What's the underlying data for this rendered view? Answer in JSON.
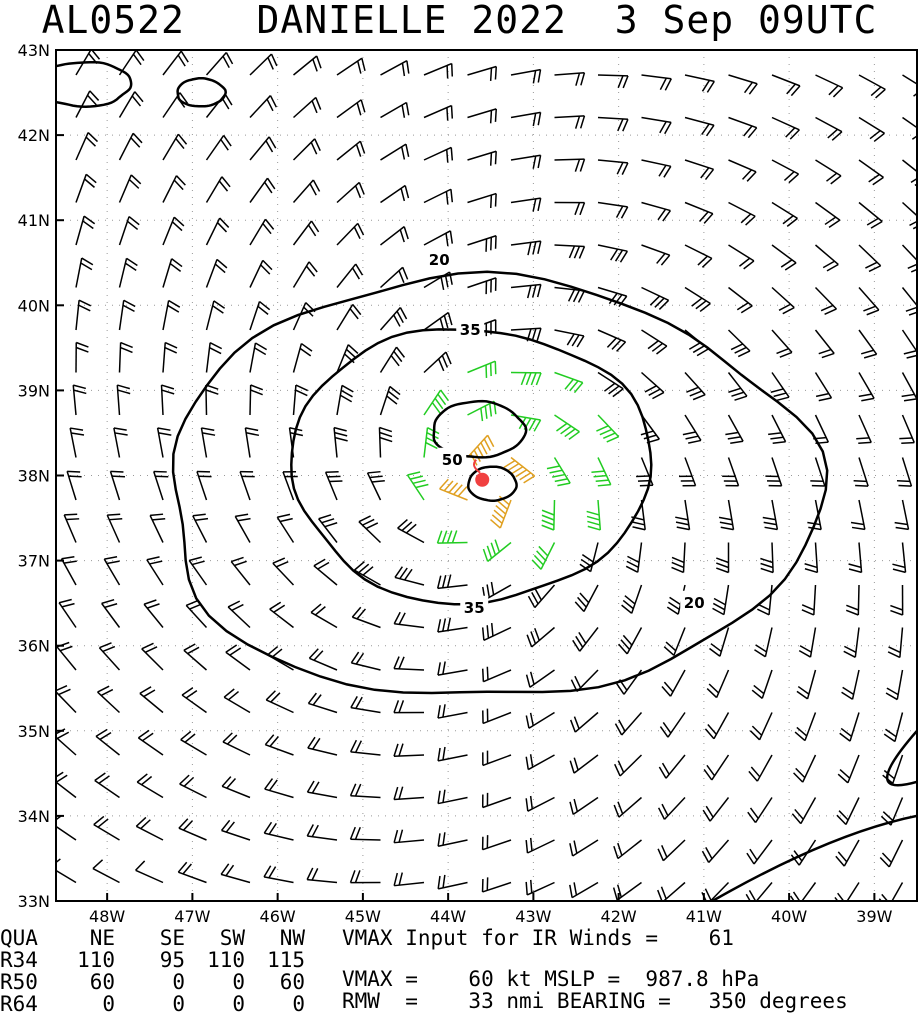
{
  "title": "AL0522   DANIELLE 2022  3 Sep 09UTC",
  "chart_data": {
    "type": "wind-barb-contour",
    "x_unit": "deg longitude (negative = W)",
    "y_unit": "deg latitude (N)",
    "xlim": [
      -48.6,
      -38.5
    ],
    "ylim": [
      33,
      43
    ],
    "x_ticks": [
      -48,
      -47,
      -46,
      -45,
      -44,
      -43,
      -42,
      -41,
      -40,
      -39
    ],
    "x_tick_labels": [
      "48W",
      "47W",
      "46W",
      "45W",
      "44W",
      "43W",
      "42W",
      "41W",
      "40W",
      "39W"
    ],
    "y_ticks": [
      33,
      34,
      35,
      36,
      37,
      38,
      39,
      40,
      41,
      42,
      43
    ],
    "y_tick_labels": [
      "33N",
      "34N",
      "35N",
      "36N",
      "37N",
      "38N",
      "39N",
      "40N",
      "41N",
      "42N",
      "43N"
    ],
    "center": {
      "lon": -43.6,
      "lat": 37.95
    },
    "contours": [
      {
        "level": 20,
        "label": "20"
      },
      {
        "level": 35,
        "label": "35"
      },
      {
        "level": 50,
        "label": "50"
      }
    ],
    "barb_colors": {
      "weak": "#000000",
      "gale": "#22cc22",
      "storm": "#e0a020",
      "hurricane": "#f07030"
    }
  },
  "table": {
    "header": [
      "QUA",
      "NE",
      "SE",
      "SW",
      "NW"
    ],
    "rows": [
      {
        "label": "R34",
        "values": [
          "110",
          "95",
          "110",
          "115"
        ]
      },
      {
        "label": "R50",
        "values": [
          "60",
          "0",
          "0",
          "60"
        ]
      },
      {
        "label": "R64",
        "values": [
          "0",
          "0",
          "0",
          "0"
        ]
      }
    ]
  },
  "info": {
    "line1": "VMAX Input for IR Winds =    61",
    "line2": "VMAX =    60 kt MSLP =  987.8 hPa",
    "line3": "RMW  =    33 nmi BEARING =   350 degrees"
  }
}
